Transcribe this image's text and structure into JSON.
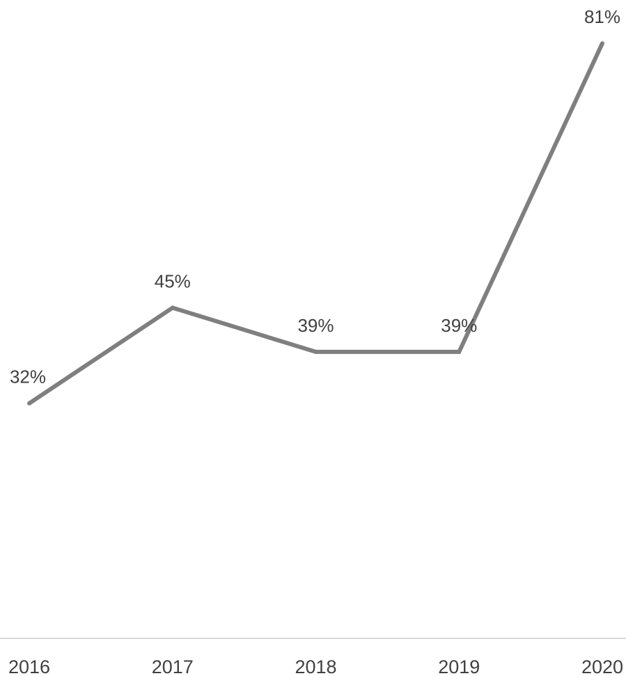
{
  "chart_data": {
    "type": "line",
    "categories": [
      "2016",
      "2017",
      "2018",
      "2019",
      "2020"
    ],
    "series": [
      {
        "values": [
          32,
          45,
          39,
          39,
          81
        ],
        "labels": [
          "32%",
          "45%",
          "39%",
          "39%",
          "81%"
        ]
      }
    ],
    "title": "",
    "xlabel": "",
    "ylabel": "",
    "ylim": [
      0,
      85
    ],
    "y_unit": "%",
    "grid": false,
    "legend": "none",
    "colors": {
      "line": "#7f7f7f",
      "axis": "#d9d9d9",
      "text": "#404040"
    }
  }
}
